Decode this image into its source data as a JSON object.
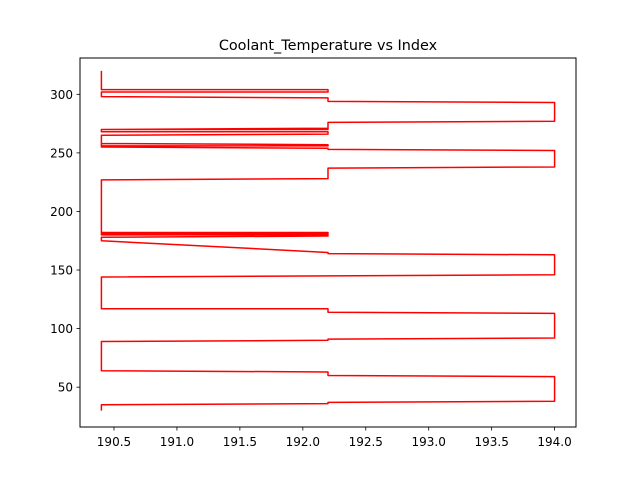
{
  "chart_data": {
    "type": "line",
    "title": "Coolant_Temperature vs Index",
    "xlabel": "",
    "ylabel": "",
    "xlim": [
      190.23,
      194.17
    ],
    "ylim": [
      16,
      331
    ],
    "xticks": [
      190.5,
      191.0,
      191.5,
      192.0,
      192.5,
      193.0,
      193.5,
      194.0
    ],
    "xtick_labels": [
      "190.5",
      "191.0",
      "191.5",
      "192.0",
      "192.5",
      "193.0",
      "193.5",
      "194.0"
    ],
    "yticks": [
      50,
      100,
      150,
      200,
      250,
      300
    ],
    "ytick_labels": [
      "50",
      "100",
      "150",
      "200",
      "250",
      "300"
    ],
    "grid": false,
    "legend": "none",
    "series": [
      {
        "color": "#ff0000",
        "x": [
          190.4,
          190.4,
          192.2,
          192.2,
          194.0,
          194.0,
          192.2,
          192.2,
          190.4,
          190.4,
          192.2,
          192.2,
          194.0,
          194.0,
          192.2,
          192.2,
          190.4,
          190.4,
          194.0,
          194.0,
          192.2,
          192.2,
          190.4,
          190.4,
          192.2,
          192.2,
          190.4,
          190.4,
          192.2,
          192.2,
          190.4,
          190.4,
          192.2,
          192.2,
          194.0,
          194.0,
          192.2,
          192.2,
          190.4,
          190.4,
          192.2,
          192.2,
          190.4,
          190.4,
          192.2,
          192.2,
          190.4,
          190.4,
          192.2,
          192.2,
          190.4,
          190.4,
          192.2,
          192.2,
          194.0,
          194.0,
          192.2,
          192.2,
          190.4,
          190.4,
          192.2,
          192.2,
          190.4,
          190.4
        ],
        "y": [
          30,
          35,
          36,
          37,
          38,
          59,
          60,
          63,
          64,
          89,
          90,
          91,
          92,
          113,
          114,
          117,
          117,
          144,
          146,
          163,
          164,
          165,
          175,
          178,
          179,
          180,
          180,
          182,
          182,
          181,
          181,
          227,
          228,
          237,
          238,
          252,
          253,
          254,
          255,
          258,
          257,
          256,
          256,
          265,
          266,
          268,
          268,
          270,
          270,
          271,
          270,
          270,
          271,
          276,
          277,
          293,
          294,
          297,
          298,
          302,
          302,
          304,
          304,
          320
        ]
      }
    ]
  }
}
